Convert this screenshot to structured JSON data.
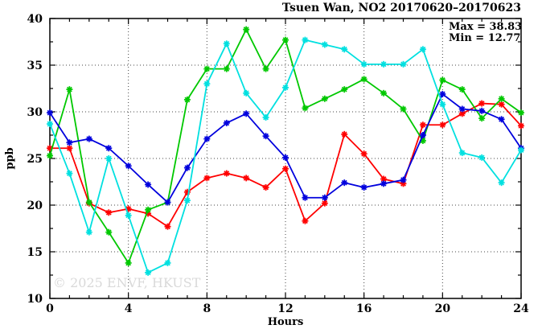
{
  "title": "Tsuen Wan, NO2 20170620–20170623",
  "annotations": {
    "max_label": "Max = 38.83",
    "min_label": "Min = 12.77"
  },
  "watermark": "© 2025 ENVF, HKUST",
  "chart_data": {
    "type": "line",
    "title": "Tsuen Wan, NO2 20170620–20170623",
    "xlabel": "Hours",
    "ylabel": "ppb",
    "xlim": [
      0,
      24
    ],
    "ylim": [
      10,
      40
    ],
    "x_major_ticks": [
      0,
      4,
      8,
      12,
      16,
      20,
      24
    ],
    "y_major_ticks": [
      10,
      15,
      20,
      25,
      30,
      35,
      40
    ],
    "x_minor_step": 1,
    "y_minor_step": 2.5,
    "grid": "dotted lines at major ticks, full border box",
    "legend": "none",
    "max_value": 38.83,
    "min_value": 12.77,
    "marker": "asterisk-star",
    "x": [
      0,
      1,
      2,
      3,
      4,
      5,
      6,
      7,
      8,
      9,
      10,
      11,
      12,
      13,
      14,
      15,
      16,
      17,
      18,
      19,
      20,
      21,
      22,
      23,
      24
    ],
    "series": [
      {
        "name": "series-1-red",
        "color": "#ff0000",
        "values": [
          26.1,
          26.1,
          20.2,
          19.2,
          19.6,
          19.1,
          17.7,
          21.4,
          22.9,
          23.4,
          22.9,
          21.9,
          23.9,
          18.3,
          20.2,
          27.6,
          25.5,
          22.8,
          22.3,
          28.6,
          28.6,
          29.8,
          30.9,
          30.8,
          28.5
        ]
      },
      {
        "name": "series-2-green",
        "color": "#00c800",
        "values": [
          25.3,
          32.4,
          20.3,
          17.1,
          13.8,
          19.5,
          20.3,
          31.3,
          34.6,
          34.6,
          38.83,
          34.6,
          37.7,
          30.4,
          31.4,
          32.4,
          33.5,
          32.0,
          30.3,
          26.9,
          33.4,
          32.4,
          29.3,
          31.4,
          29.9
        ]
      },
      {
        "name": "series-3-blue",
        "color": "#0000dd",
        "values": [
          29.9,
          26.7,
          27.1,
          26.1,
          24.2,
          22.2,
          20.3,
          24.0,
          27.1,
          28.8,
          29.8,
          27.4,
          25.1,
          20.8,
          20.8,
          22.4,
          21.9,
          22.3,
          22.7,
          27.5,
          31.9,
          30.3,
          30.1,
          29.2,
          26.1
        ]
      },
      {
        "name": "series-4-cyan",
        "color": "#00e0e0",
        "values": [
          28.7,
          23.4,
          17.1,
          25.0,
          18.9,
          12.77,
          13.8,
          20.5,
          33.0,
          37.3,
          32.0,
          29.4,
          32.6,
          37.7,
          37.2,
          36.7,
          35.1,
          35.1,
          35.1,
          36.7,
          30.8,
          25.6,
          25.1,
          22.4,
          25.9
        ]
      }
    ]
  }
}
